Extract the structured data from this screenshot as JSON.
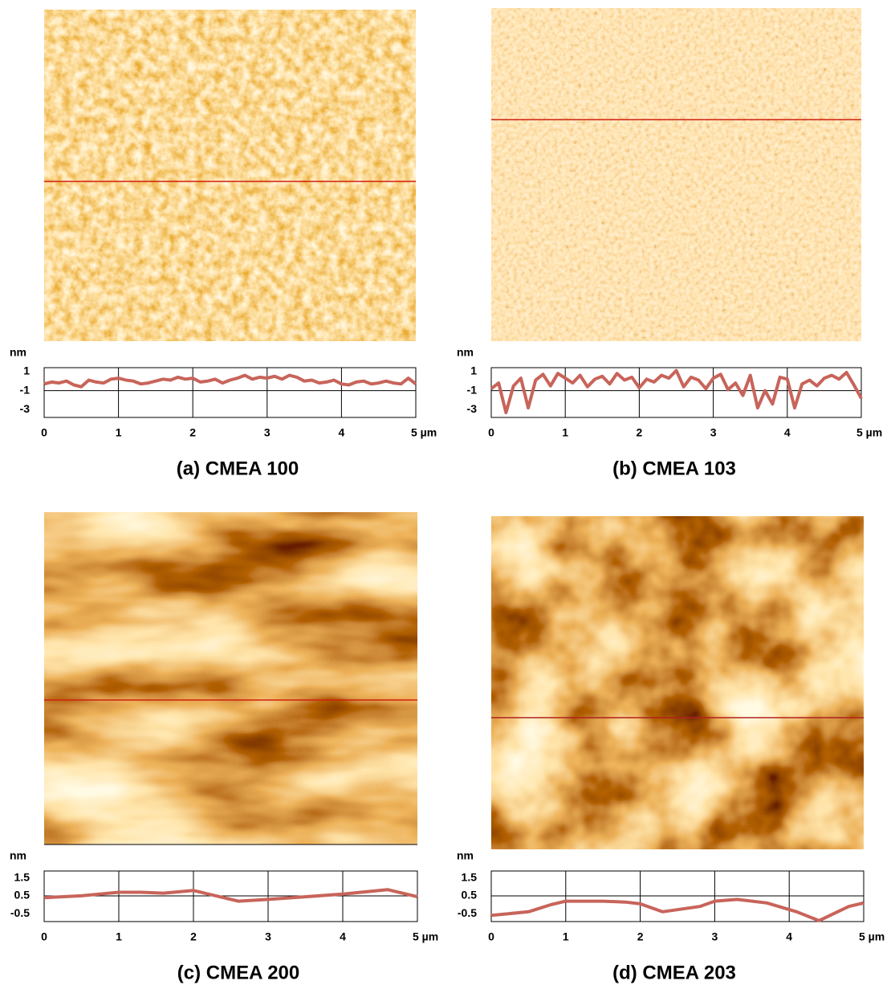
{
  "chart_data": [
    {
      "type": "line",
      "title": "(a) CMEA 100",
      "y_label": "nm",
      "color": "#c8645a",
      "x": [
        0,
        0.1,
        0.2,
        0.3,
        0.4,
        0.5,
        0.6,
        0.7,
        0.8,
        0.9,
        1,
        1.1,
        1.2,
        1.3,
        1.4,
        1.5,
        1.6,
        1.7,
        1.8,
        1.9,
        2,
        2.1,
        2.2,
        2.3,
        2.4,
        2.5,
        2.6,
        2.7,
        2.8,
        2.9,
        3,
        3.1,
        3.2,
        3.3,
        3.4,
        3.5,
        3.6,
        3.7,
        3.8,
        3.9,
        4,
        4.1,
        4.2,
        4.3,
        4.4,
        4.5,
        4.6,
        4.7,
        4.8,
        4.9,
        5
      ],
      "values": [
        -0.3,
        -0.1,
        -0.2,
        0.0,
        -0.4,
        -0.6,
        0.1,
        -0.1,
        -0.2,
        0.2,
        0.3,
        0.1,
        0.0,
        -0.3,
        -0.2,
        0.0,
        0.2,
        0.1,
        0.4,
        0.2,
        0.3,
        -0.1,
        0.0,
        0.2,
        -0.2,
        0.1,
        0.3,
        0.6,
        0.2,
        0.4,
        0.3,
        0.5,
        0.2,
        0.6,
        0.4,
        0.0,
        0.1,
        -0.2,
        -0.1,
        0.1,
        -0.3,
        -0.4,
        -0.1,
        0.0,
        -0.3,
        -0.2,
        0.0,
        -0.2,
        -0.3,
        0.3,
        -0.3
      ],
      "xlim": [
        0,
        5
      ],
      "xticks": [
        0,
        1,
        2,
        3,
        4,
        {
          "value": 5,
          "label": "5 µm"
        }
      ],
      "ylim": [
        -3.8,
        1.4
      ],
      "yticks": [
        1,
        -1,
        -3
      ],
      "grid": true
    },
    {
      "type": "line",
      "title": "(b) CMEA 103",
      "y_label": "nm",
      "color": "#c8645a",
      "x": [
        0,
        0.1,
        0.2,
        0.3,
        0.4,
        0.5,
        0.6,
        0.7,
        0.8,
        0.9,
        1,
        1.1,
        1.2,
        1.3,
        1.4,
        1.5,
        1.6,
        1.7,
        1.8,
        1.9,
        2,
        2.1,
        2.2,
        2.3,
        2.4,
        2.5,
        2.6,
        2.7,
        2.8,
        2.9,
        3,
        3.1,
        3.2,
        3.3,
        3.4,
        3.5,
        3.6,
        3.7,
        3.8,
        3.9,
        4,
        4.1,
        4.2,
        4.3,
        4.4,
        4.5,
        4.6,
        4.7,
        4.8,
        4.9,
        5
      ],
      "values": [
        -0.8,
        -0.2,
        -3.3,
        -0.5,
        0.3,
        -2.8,
        0.1,
        0.7,
        -0.5,
        0.8,
        0.3,
        -0.2,
        0.6,
        -0.6,
        0.2,
        0.5,
        -0.3,
        0.8,
        0.1,
        0.4,
        -0.7,
        0.2,
        -0.1,
        0.6,
        0.3,
        1.1,
        -0.6,
        0.4,
        0.1,
        -0.8,
        0.3,
        0.7,
        -0.9,
        -0.2,
        -1.5,
        0.6,
        -2.8,
        -1.0,
        -2.4,
        0.4,
        0.2,
        -2.8,
        -0.3,
        0.1,
        -0.5,
        0.3,
        0.6,
        0.2,
        0.9,
        -0.4,
        -1.8
      ],
      "xlim": [
        0,
        5
      ],
      "xticks": [
        0,
        1,
        2,
        3,
        4,
        {
          "value": 5,
          "label": "5 µm"
        }
      ],
      "ylim": [
        -3.8,
        1.4
      ],
      "yticks": [
        1,
        -1,
        -3
      ],
      "grid": true
    },
    {
      "type": "line",
      "title": "(c) CMEA 200",
      "y_label": "nm",
      "color": "#c8645a",
      "x": [
        0,
        0.5,
        1,
        1.3,
        1.6,
        2,
        2.3,
        2.6,
        3,
        3.5,
        4,
        4.6,
        5
      ],
      "values": [
        0.4,
        0.5,
        0.7,
        0.7,
        0.65,
        0.8,
        0.5,
        0.2,
        0.3,
        0.45,
        0.6,
        0.85,
        0.45
      ],
      "xlim": [
        0,
        5
      ],
      "xticks": [
        0,
        1,
        2,
        3,
        4,
        {
          "value": 5,
          "label": "5 µm"
        }
      ],
      "ylim": [
        -0.95,
        1.9
      ],
      "yticks": [
        1.5,
        0.5,
        -0.5
      ],
      "grid": true
    },
    {
      "type": "line",
      "title": "(d) CMEA 203",
      "y_label": "nm",
      "color": "#c8645a",
      "x": [
        0,
        0.5,
        0.8,
        1,
        1.5,
        1.8,
        2,
        2.3,
        2.8,
        3,
        3.3,
        3.7,
        4.1,
        4.4,
        4.8,
        5
      ],
      "values": [
        -0.6,
        -0.4,
        0,
        0.2,
        0.2,
        0.15,
        0.05,
        -0.4,
        -0.1,
        0.2,
        0.3,
        0.1,
        -0.4,
        -0.9,
        -0.1,
        0.1
      ],
      "xlim": [
        0,
        5
      ],
      "xticks": [
        0,
        1,
        2,
        3,
        4,
        {
          "value": 5,
          "label": "5 µm"
        }
      ],
      "ylim": [
        -0.95,
        1.9
      ],
      "yticks": [
        1.5,
        0.5,
        -0.5
      ],
      "grid": true
    }
  ]
}
